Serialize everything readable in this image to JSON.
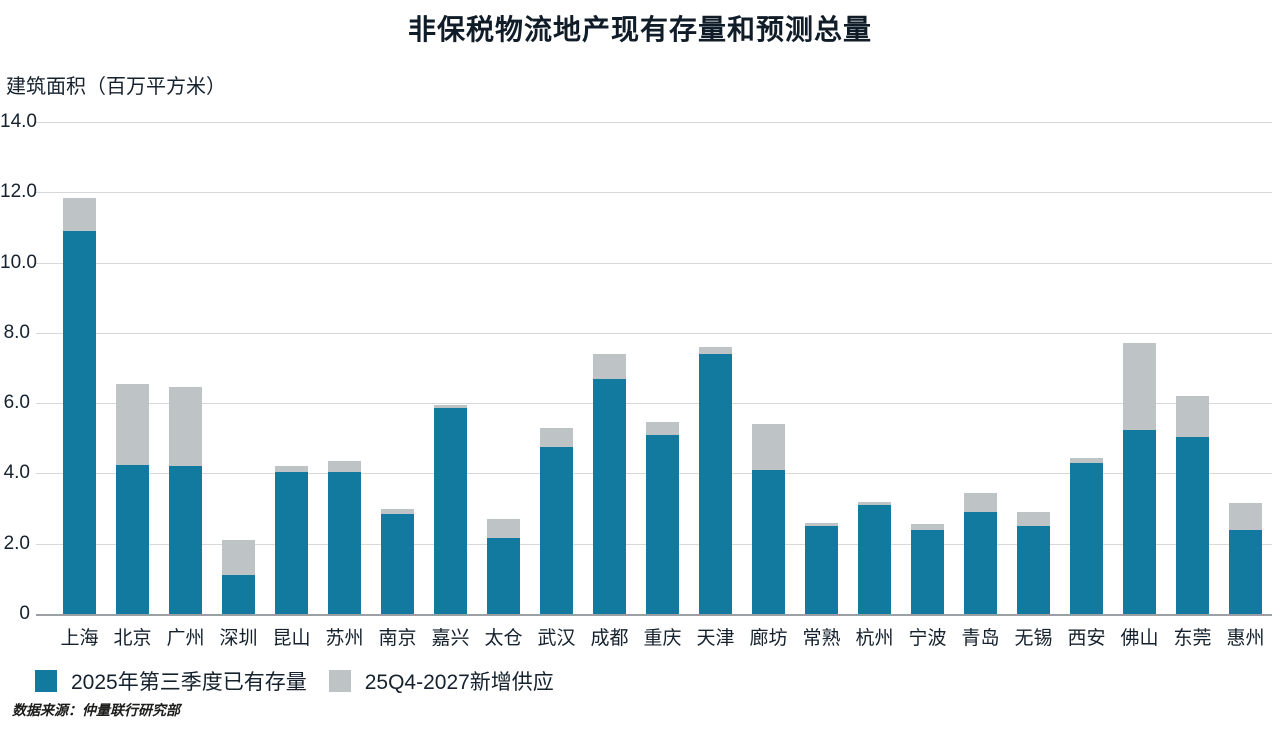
{
  "title": "非保税物流地产现有存量和预测总量",
  "y_axis_label": "建筑面积（百万平方米）",
  "source": "数据来源：仲量联行研究部",
  "colors": {
    "existing": "#127A9F",
    "new_supply": "#BEC3C6",
    "text": "#15222E",
    "gridline": "#D6D8D9",
    "axisline": "#9AA1A6"
  },
  "legend": [
    {
      "label": "2025年第三季度已有存量",
      "color_key": "existing"
    },
    {
      "label": "25Q4-2027新增供应",
      "color_key": "new_supply"
    }
  ],
  "chart_data": {
    "type": "bar",
    "stacked": true,
    "title": "非保税物流地产现有存量和预测总量",
    "ylabel": "建筑面积（百万平方米）",
    "ylim": [
      0,
      14
    ],
    "yticks": [
      "14.0",
      "12.0",
      "10.0",
      "8.0",
      "6.0",
      "4.0",
      "2.0",
      "0"
    ],
    "grid": true,
    "legend_position": "bottom-left",
    "categories": [
      "上海",
      "北京",
      "广州",
      "深圳",
      "昆山",
      "苏州",
      "南京",
      "嘉兴",
      "太仓",
      "武汉",
      "成都",
      "重庆",
      "天津",
      "廊坊",
      "常熟",
      "杭州",
      "宁波",
      "青岛",
      "无锡",
      "西安",
      "佛山",
      "东莞",
      "惠州"
    ],
    "series": [
      {
        "name": "2025年第三季度已有存量",
        "values": [
          10.9,
          4.25,
          4.2,
          1.1,
          4.05,
          4.05,
          2.85,
          5.85,
          2.15,
          4.75,
          6.7,
          5.1,
          7.4,
          4.1,
          2.5,
          3.1,
          2.4,
          2.9,
          2.5,
          4.3,
          5.25,
          5.05,
          2.4
        ]
      },
      {
        "name": "25Q4-2027新增供应",
        "values": [
          0.95,
          2.3,
          2.25,
          1.0,
          0.15,
          0.3,
          0.15,
          0.1,
          0.55,
          0.55,
          0.7,
          0.35,
          0.2,
          1.3,
          0.1,
          0.1,
          0.15,
          0.55,
          0.4,
          0.15,
          2.45,
          1.15,
          0.75
        ]
      }
    ]
  }
}
